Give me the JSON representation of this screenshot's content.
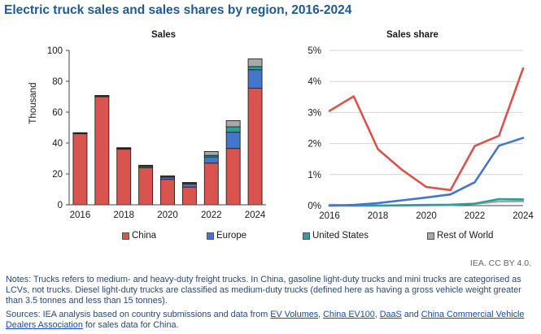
{
  "title": "Electric truck sales and sales shares by region, 2016-2024",
  "chart_data": [
    {
      "type": "bar",
      "stacked": true,
      "title": "Sales",
      "ylabel": "Thousand",
      "ylim": [
        0,
        100
      ],
      "yticks": [
        "0",
        "20",
        "40",
        "60",
        "80",
        "100"
      ],
      "categories": [
        "2016",
        "2017",
        "2018",
        "2019",
        "2020",
        "2021",
        "2022",
        "2023",
        "2024"
      ],
      "xtick_labels": [
        "2016",
        "2018",
        "2020",
        "2022",
        "2024"
      ],
      "series": [
        {
          "name": "China",
          "color": "#d9534f",
          "values": [
            46,
            70,
            36,
            24,
            16.5,
            11.5,
            27,
            36.5,
            75.5
          ]
        },
        {
          "name": "Europe",
          "color": "#4477cc",
          "values": [
            0.4,
            0.5,
            0.5,
            0.9,
            1.4,
            2.0,
            4.0,
            10.5,
            12
          ]
        },
        {
          "name": "United States",
          "color": "#2aa198",
          "values": [
            0.1,
            0.1,
            0.1,
            0.2,
            0.3,
            0.4,
            1.0,
            3.5,
            2
          ]
        },
        {
          "name": "Rest of World",
          "color": "#a8a8a8",
          "values": [
            0.2,
            0.2,
            0.4,
            0.5,
            0.6,
            0.6,
            2.5,
            4.0,
            5
          ]
        }
      ],
      "legend_position": "bottom"
    },
    {
      "type": "line",
      "title": "Sales share",
      "ylim": [
        0,
        5
      ],
      "yticks": [
        "0%",
        "1%",
        "2%",
        "3%",
        "4%",
        "5%"
      ],
      "x": [
        "2016",
        "2017",
        "2018",
        "2019",
        "2020",
        "2021",
        "2022",
        "2023",
        "2024"
      ],
      "xtick_labels": [
        "2016",
        "2018",
        "2020",
        "2022",
        "2024"
      ],
      "series": [
        {
          "name": "China",
          "color": "#d9534f",
          "values": [
            3.05,
            3.52,
            1.82,
            1.15,
            0.6,
            0.5,
            1.92,
            2.25,
            4.42
          ]
        },
        {
          "name": "Europe",
          "color": "#4477cc",
          "values": [
            0.0,
            0.02,
            0.08,
            0.17,
            0.26,
            0.36,
            0.75,
            1.93,
            2.18
          ]
        },
        {
          "name": "United States",
          "color": "#2aa198",
          "values": [
            0.0,
            0.0,
            0.0,
            0.01,
            0.02,
            0.03,
            0.06,
            0.21,
            0.2
          ]
        },
        {
          "name": "Rest of World",
          "color": "#a8a8a8",
          "values": [
            0.03,
            0.0,
            0.0,
            0.0,
            0.01,
            0.02,
            0.06,
            0.13,
            0.14
          ]
        }
      ],
      "legend_position": "bottom"
    }
  ],
  "legend": [
    {
      "name": "China",
      "color": "#d9534f"
    },
    {
      "name": "Europe",
      "color": "#4477cc"
    },
    {
      "name": "United States",
      "color": "#2aa198"
    },
    {
      "name": "Rest of World",
      "color": "#a8a8a8"
    }
  ],
  "credit": "IEA. CC BY 4.0.",
  "notes": "Notes: Trucks refers to medium- and heavy-duty freight trucks. In China, gasoline light-duty trucks and mini trucks are categorised as LCVs, not trucks. Diesel light-duty trucks are classified as medium-duty trucks (defined here as having a gross vehicle weight greater than 3.5 tonnes and less than 15 tonnes).",
  "sources": {
    "prefix": "Sources: IEA analysis based on country submissions and data from ",
    "link1": "EV Volumes",
    "sep1": ", ",
    "link2": "China EV100",
    "sep2": ", ",
    "link3": "DaaS",
    "sep3": " and ",
    "link4": "China Commercial Vehicle Dealers Association",
    "suffix": " for sales data for China."
  }
}
